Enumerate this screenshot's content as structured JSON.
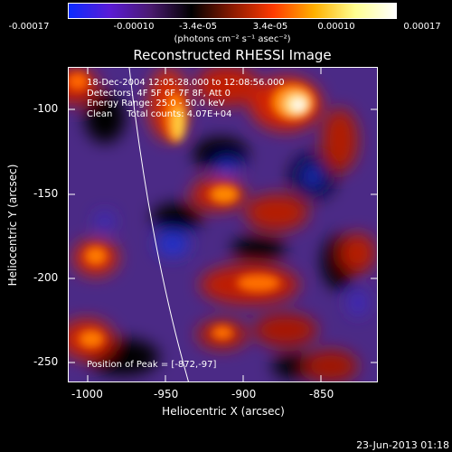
{
  "colorbar": {
    "labels": [
      "-0.00017",
      "-0.00010",
      "-3.4e-05",
      "3.4e-05",
      "0.00010",
      "0.00017"
    ],
    "units": "(photons cm⁻² s⁻¹ asec⁻²)",
    "colors": [
      "#0b2bff",
      "#5a1bd6",
      "#4a1a70",
      "#000000",
      "#8a1a00",
      "#ff3a00",
      "#ffb000",
      "#ffff90",
      "#ffffff"
    ]
  },
  "title": "Reconstructed RHESSI Image",
  "info": {
    "line1": "18-Dec-2004 12:05:28.000 to 12:08:56.000",
    "line2": "Detectors: 4F 5F 6F 7F 8F, Att 0",
    "line3": "Energy Range: 25.0 - 50.0 keV",
    "line4": "Clean     Total counts: 4.07E+04",
    "peak": "Position of Peak = [-872,-97]"
  },
  "axes": {
    "xlabel": "Heliocentric X (arcsec)",
    "ylabel": "Heliocentric Y (arcsec)",
    "xticks": [
      "-1000",
      "-950",
      "-900",
      "-850"
    ],
    "yticks": [
      "-100",
      "-150",
      "-200",
      "-250"
    ]
  },
  "footer": {
    "date": "23-Jun-2013 01:18"
  }
}
